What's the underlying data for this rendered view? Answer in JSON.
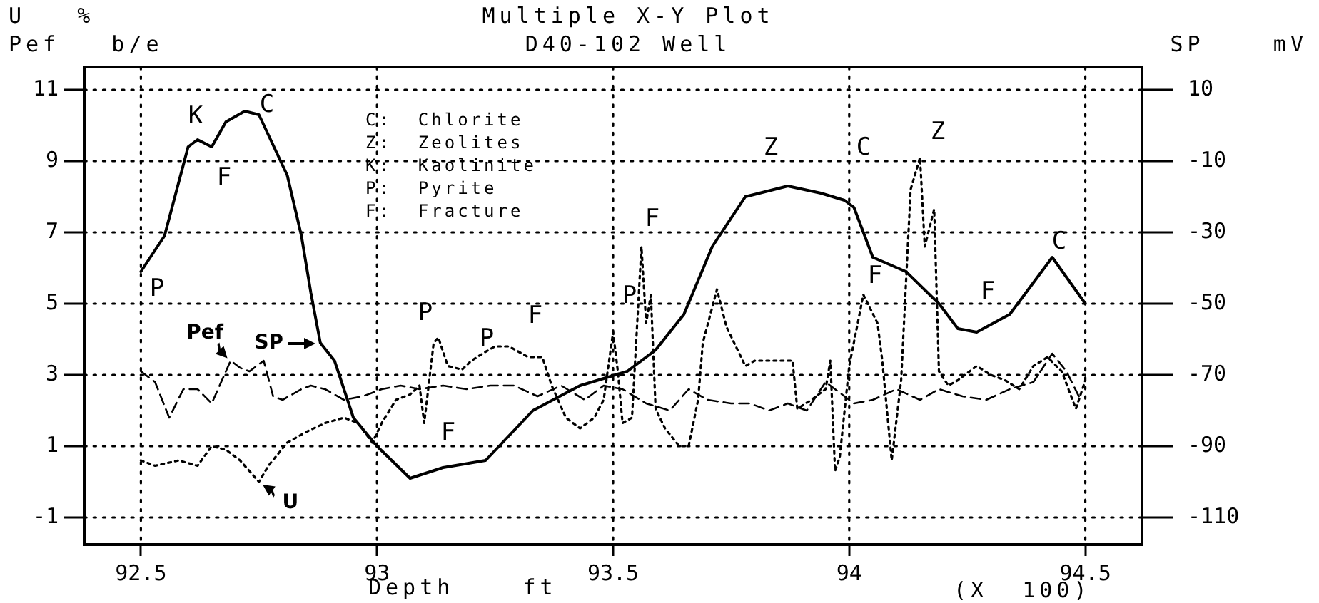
{
  "chart_data": {
    "type": "line",
    "title": "Multiple X-Y Plot",
    "subtitle": "D40-102 Well",
    "xlabel": "Depth    ft",
    "ylabel": "U   %\nPef   b/e",
    "y2label": "SP    mV",
    "xlim": [
      92.38,
      94.62
    ],
    "xticks": [
      {
        "value": 92.5,
        "label": "92.5"
      },
      93,
      {
        "value": 93.5,
        "label": "93.5"
      },
      94,
      {
        "value": 94.5,
        "label": "94.5"
      }
    ],
    "ylim": [
      -1.76,
      11.64
    ],
    "yticks": [
      -1,
      1,
      3,
      5,
      7,
      9,
      11
    ],
    "y2lim": [
      -117.6,
      16.4
    ],
    "y2ticks": [
      -110,
      -90,
      -70,
      -50,
      -30,
      -10,
      10
    ],
    "grid": true,
    "legend": "left",
    "marker": "none",
    "series": [
      {
        "name": "SP",
        "color": "#000000",
        "axis": "y2",
        "line_style": "solid",
        "x": [
          92.5,
          92.55,
          92.6,
          92.62,
          92.65,
          92.68,
          92.72,
          92.75,
          92.81,
          92.84,
          92.86,
          92.88,
          92.91,
          92.95,
          93.0,
          93.07,
          93.14,
          93.23,
          93.33,
          93.43,
          93.53,
          93.59,
          93.65,
          93.71,
          93.78,
          93.87,
          93.94,
          93.99,
          94.01,
          94.05,
          94.12,
          94.19,
          94.23,
          94.27,
          94.34,
          94.43,
          94.5
        ],
        "values": [
          -41,
          -31,
          -6,
          -4,
          -6,
          1,
          4,
          3,
          -14,
          -31,
          -47,
          -61,
          -66,
          -82,
          -90,
          -99,
          -96,
          -94,
          -80,
          -73,
          -69,
          -63,
          -53,
          -34,
          -20,
          -17,
          -19,
          -21,
          -23,
          -37,
          -41,
          -50,
          -57,
          -58,
          -53,
          -37,
          -50
        ]
      },
      {
        "name": "Pef",
        "color": "#000000",
        "axis": "y",
        "line_style": "dashed",
        "x": [
          92.5,
          92.53,
          92.56,
          92.59,
          92.62,
          92.65,
          92.69,
          92.71,
          92.73,
          92.76,
          92.78,
          92.8,
          92.84,
          92.86,
          92.89,
          92.93,
          92.97,
          93.01,
          93.05,
          93.09,
          93.14,
          93.19,
          93.24,
          93.29,
          93.34,
          93.39,
          93.44,
          93.48,
          93.52,
          93.57,
          93.62,
          93.66,
          93.7,
          93.75,
          93.79,
          93.83,
          93.87,
          93.91,
          93.95,
          94.01,
          94.05,
          94.1,
          94.15,
          94.19,
          94.24,
          94.29,
          94.34,
          94.39,
          94.43,
          94.46,
          94.49
        ],
        "values": [
          3.1,
          2.8,
          1.8,
          2.6,
          2.6,
          2.2,
          3.4,
          3.2,
          3.1,
          3.4,
          2.4,
          2.3,
          2.6,
          2.7,
          2.6,
          2.3,
          2.4,
          2.6,
          2.7,
          2.6,
          2.7,
          2.6,
          2.7,
          2.7,
          2.4,
          2.7,
          2.3,
          2.7,
          2.6,
          2.2,
          2.0,
          2.6,
          2.3,
          2.2,
          2.2,
          2.0,
          2.2,
          2.0,
          2.8,
          2.2,
          2.3,
          2.6,
          2.3,
          2.6,
          2.4,
          2.3,
          2.6,
          2.8,
          3.6,
          3.1,
          2.3
        ]
      },
      {
        "name": "U",
        "color": "#000000",
        "axis": "y",
        "line_style": "dotted",
        "x": [
          92.5,
          92.53,
          92.58,
          92.62,
          92.65,
          92.68,
          92.71,
          92.73,
          92.75,
          92.77,
          92.81,
          92.85,
          92.89,
          92.93,
          92.96,
          92.99,
          93.01,
          93.04,
          93.07,
          93.09,
          93.1,
          93.12,
          93.13,
          93.15,
          93.18,
          93.2,
          93.23,
          93.25,
          93.28,
          93.32,
          93.35,
          93.37,
          93.4,
          93.43,
          93.46,
          93.48,
          93.49,
          93.5,
          93.51,
          93.52,
          93.54,
          93.56,
          93.57,
          93.58,
          93.59,
          93.61,
          93.64,
          93.66,
          93.68,
          93.69,
          93.72,
          93.74,
          93.78,
          93.8,
          93.84,
          93.88,
          93.89,
          93.92,
          93.95,
          93.96,
          93.97,
          93.98,
          94.0,
          94.03,
          94.06,
          94.07,
          94.09,
          94.11,
          94.13,
          94.15,
          94.16,
          94.18,
          94.19,
          94.21,
          94.23,
          94.27,
          94.3,
          94.33,
          94.36,
          94.39,
          94.42,
          94.45,
          94.48,
          94.5
        ],
        "values": [
          0.6,
          0.45,
          0.6,
          0.45,
          1.0,
          0.9,
          0.6,
          0.3,
          0.0,
          0.45,
          1.1,
          1.4,
          1.65,
          1.8,
          1.65,
          1.1,
          1.65,
          2.3,
          2.45,
          2.7,
          1.65,
          3.9,
          4.05,
          3.25,
          3.15,
          3.4,
          3.65,
          3.8,
          3.8,
          3.5,
          3.5,
          2.7,
          1.8,
          1.5,
          1.8,
          2.3,
          3.25,
          4.2,
          3.1,
          1.65,
          1.8,
          6.6,
          4.45,
          5.25,
          2.05,
          1.5,
          1.0,
          1.0,
          2.3,
          3.9,
          5.4,
          4.35,
          3.25,
          3.4,
          3.4,
          3.4,
          2.05,
          2.3,
          2.6,
          3.4,
          0.3,
          0.7,
          3.25,
          5.25,
          4.45,
          3.4,
          0.6,
          2.85,
          8.2,
          9.1,
          6.6,
          7.65,
          3.1,
          2.7,
          2.85,
          3.25,
          3.0,
          2.85,
          2.6,
          3.25,
          3.5,
          3.1,
          2.05,
          2.85
        ]
      }
    ],
    "annotations": [
      "C:  Chlorite",
      "Z:  Zeolites",
      "K:  Kaolinite",
      "P:  Pyrite",
      "F:  Fracture",
      "(X  100)",
      "P",
      "K",
      "C",
      "F",
      "F",
      "P",
      "P",
      "F",
      "P",
      "F",
      "Z",
      "C",
      "F",
      "Z",
      "F",
      "C"
    ]
  }
}
